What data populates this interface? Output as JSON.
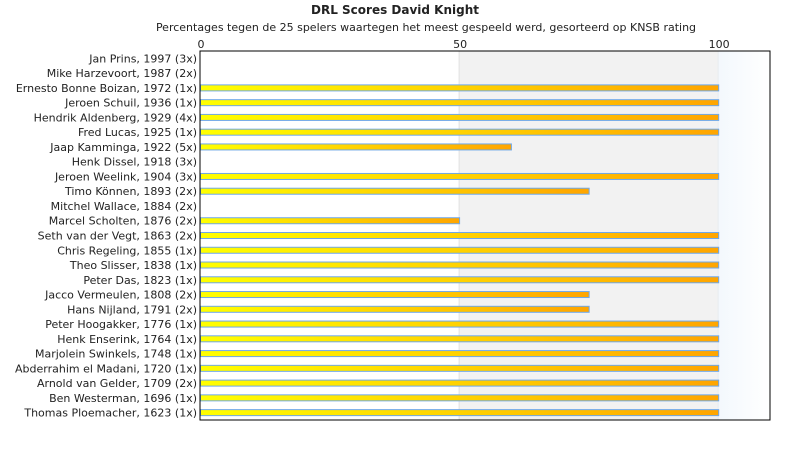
{
  "chart_data": {
    "type": "bar",
    "orientation": "horizontal",
    "title": "DRL Scores David Knight",
    "subtitle": "Percentages tegen de 25 spelers waartegen het meest gespeeld werd, gesorteerd op KNSB rating",
    "xlim": [
      0,
      110
    ],
    "xticks": [
      0,
      50,
      100
    ],
    "categories": [
      "Jan Prins, 1997 (3x)",
      "Mike Harzevoort, 1987 (2x)",
      "Ernesto Bonne Boizan, 1972 (1x)",
      "Jeroen Schuil, 1936 (1x)",
      "Hendrik Aldenberg, 1929 (4x)",
      "Fred Lucas, 1925 (1x)",
      "Jaap Kamminga, 1922 (5x)",
      "Henk Dissel, 1918 (3x)",
      "Jeroen Weelink, 1904 (3x)",
      "Timo Können, 1893 (2x)",
      "Mitchel Wallace, 1884 (2x)",
      "Marcel Scholten, 1876 (2x)",
      "Seth van der Vegt, 1863 (2x)",
      "Chris Regeling, 1855 (1x)",
      "Theo Slisser, 1838 (1x)",
      "Peter Das, 1823 (1x)",
      "Jacco Vermeulen, 1808 (2x)",
      "Hans Nijland, 1791 (2x)",
      "Peter Hoogakker, 1776 (1x)",
      "Henk Enserink, 1764 (1x)",
      "Marjolein Swinkels, 1748 (1x)",
      "Abderrahim el Madani, 1720 (1x)",
      "Arnold van Gelder, 1709 (2x)",
      "Ben Westerman, 1696 (1x)",
      "Thomas Ploemacher, 1623 (1x)"
    ],
    "values": [
      0,
      0,
      100,
      100,
      100,
      100,
      60,
      0,
      100,
      75,
      0,
      50,
      100,
      100,
      100,
      100,
      75,
      75,
      100,
      100,
      100,
      100,
      100,
      100,
      100
    ],
    "colors": {
      "bar_start": "#ffff00",
      "bar_end": "#ffa500",
      "bar_border": "#6fa8e8",
      "band_50_100": "#f2f2f2",
      "band_100_110": "#f3f8fd"
    },
    "grid": false
  }
}
